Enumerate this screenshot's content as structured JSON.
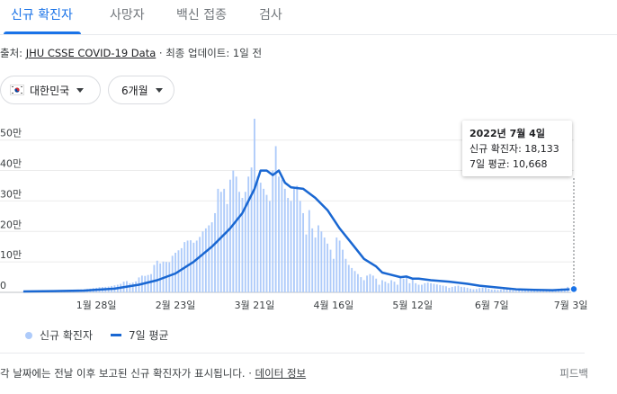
{
  "tabs": [
    "신규 확진자",
    "사망자",
    "백신 접종",
    "검사"
  ],
  "source": {
    "prefix": "출처: ",
    "link": "JHU CSSE COVID-19 Data",
    "suffix": " · 최종 업데이트: 1일 전"
  },
  "filters": {
    "country": "대한민국",
    "country_flag_icon": "korea-flag-icon",
    "period": "6개월"
  },
  "tooltip": {
    "date": "2022년 7월 4일",
    "cases": "신규 확진자: 18,133",
    "avg": "7일 평균: 10,668"
  },
  "legend": {
    "cases": "신규 확진자",
    "avg": "7일 평균"
  },
  "footer": {
    "note": "각 날짜에는 전날 이후 보고된 신규 확진자가 표시됩니다.",
    "sep": " · ",
    "link": "데이터 정보",
    "feedback": "피드백"
  },
  "colors": {
    "accent": "#1a73e8",
    "bar": "#aecbfa",
    "line": "#1967d2"
  },
  "chart_data": {
    "type": "bar",
    "ylim": [
      0,
      570000
    ],
    "y_ticks": [
      0,
      100000,
      200000,
      300000,
      400000,
      500000
    ],
    "y_tick_labels": [
      "0",
      "10만",
      "20만",
      "30만",
      "40만",
      "50만"
    ],
    "x_tick_labels": [
      "1월 28일",
      "2월 23일",
      "3월 21일",
      "4월 16일",
      "5월 12일",
      "6월 7일",
      "7월 3일"
    ],
    "x_tick_day_index": [
      24,
      50,
      76,
      102,
      128,
      154,
      180
    ],
    "n_days": 182,
    "grid": true,
    "legend": "bottom-left",
    "series": [
      {
        "name": "신규 확진자",
        "type": "bar",
        "values_start": "2022-01-05",
        "values": [
          3000,
          4500,
          4000,
          4200,
          4100,
          4000,
          3500,
          3200,
          3500,
          4500,
          5200,
          5600,
          4400,
          4000,
          4500,
          5200,
          7500,
          8500,
          9000,
          9500,
          10000,
          11000,
          12000,
          14000,
          15000,
          17000,
          17500,
          18000,
          19000,
          21000,
          23000,
          25000,
          28000,
          35000,
          37000,
          30000,
          32000,
          36000,
          49000,
          55000,
          54000,
          57000,
          60000,
          90000,
          104000,
          95000,
          101000,
          100000,
          99000,
          120000,
          130000,
          138000,
          145000,
          165000,
          170000,
          171000,
          163000,
          170000,
          182000,
          200000,
          210000,
          220000,
          230000,
          260000,
          340000,
          330000,
          340000,
          290000,
          370000,
          400000,
          380000,
          330000,
          310000,
          330000,
          380000,
          410000,
          570000,
          380000,
          360000,
          340000,
          320000,
          300000,
          400000,
          480000,
          380000,
          370000,
          340000,
          310000,
          300000,
          340000,
          350000,
          300000,
          260000,
          190000,
          270000,
          210000,
          180000,
          220000,
          200000,
          180000,
          160000,
          140000,
          110000,
          180000,
          170000,
          140000,
          110000,
          90000,
          80000,
          70000,
          60000,
          50000,
          40000,
          55000,
          60000,
          55000,
          45000,
          25000,
          40000,
          35000,
          30000,
          40000,
          35000,
          25000,
          50000,
          45000,
          50000,
          30000,
          45000,
          30000,
          25000,
          25000,
          30000,
          32000,
          30000,
          28000,
          26000,
          24000,
          22000,
          20000,
          15000,
          18000,
          20000,
          22000,
          18000,
          17000,
          15000,
          12000,
          10000,
          11000,
          14000,
          15000,
          15000,
          12000,
          9000,
          9000,
          8000,
          9000,
          10000,
          9500,
          8000,
          6000,
          5000,
          7000,
          9000,
          10000,
          9000,
          8000,
          7000,
          6000,
          6000,
          7000,
          8000,
          9000,
          9000,
          10000,
          12000,
          13000,
          12000,
          18133
        ]
      },
      {
        "name": "7일 평균",
        "type": "line",
        "points": [
          [
            0,
            3000
          ],
          [
            10,
            4000
          ],
          [
            20,
            6000
          ],
          [
            30,
            12000
          ],
          [
            38,
            25000
          ],
          [
            44,
            40000
          ],
          [
            50,
            62000
          ],
          [
            56,
            100000
          ],
          [
            62,
            150000
          ],
          [
            68,
            210000
          ],
          [
            72,
            260000
          ],
          [
            74,
            300000
          ],
          [
            76,
            340000
          ],
          [
            78,
            400000
          ],
          [
            80,
            400000
          ],
          [
            82,
            385000
          ],
          [
            84,
            400000
          ],
          [
            86,
            360000
          ],
          [
            88,
            345000
          ],
          [
            92,
            340000
          ],
          [
            96,
            310000
          ],
          [
            100,
            270000
          ],
          [
            104,
            210000
          ],
          [
            108,
            160000
          ],
          [
            112,
            110000
          ],
          [
            116,
            85000
          ],
          [
            118,
            65000
          ],
          [
            120,
            60000
          ],
          [
            124,
            50000
          ],
          [
            126,
            52000
          ],
          [
            128,
            45000
          ],
          [
            130,
            45000
          ],
          [
            134,
            40000
          ],
          [
            140,
            35000
          ],
          [
            146,
            28000
          ],
          [
            150,
            22000
          ],
          [
            156,
            16000
          ],
          [
            162,
            10000
          ],
          [
            168,
            8000
          ],
          [
            174,
            7000
          ],
          [
            181,
            10668
          ]
        ]
      }
    ]
  }
}
